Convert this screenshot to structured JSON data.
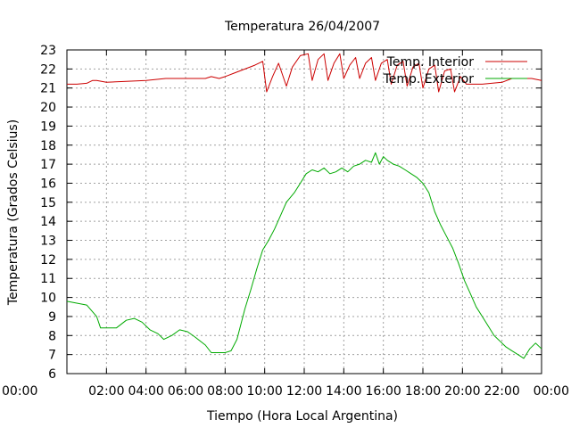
{
  "chart_data": {
    "type": "line",
    "title": "Temperatura 26/04/2007",
    "xlabel": "Tiempo (Hora Local Argentina)",
    "ylabel": "Temperatura (Grados Celsius)",
    "xlim": [
      0,
      24
    ],
    "ylim": [
      6,
      23
    ],
    "grid": true,
    "legend_position": "top-right",
    "x_tick_labels": [
      "00:00",
      "02:00",
      "04:00",
      "06:00",
      "08:00",
      "10:00",
      "12:00",
      "14:00",
      "16:00",
      "18:00",
      "20:00",
      "22:00",
      "00:00"
    ],
    "y_ticks": [
      6,
      7,
      8,
      9,
      10,
      11,
      12,
      13,
      14,
      15,
      16,
      17,
      18,
      19,
      20,
      21,
      22,
      23
    ],
    "series": [
      {
        "name": "Temp. Interior",
        "color": "#cc0000",
        "points": [
          [
            0,
            21.2
          ],
          [
            0.5,
            21.2
          ],
          [
            1,
            21.25
          ],
          [
            1.3,
            21.4
          ],
          [
            1.5,
            21.4
          ],
          [
            2,
            21.3
          ],
          [
            3,
            21.35
          ],
          [
            4,
            21.4
          ],
          [
            5,
            21.5
          ],
          [
            6,
            21.5
          ],
          [
            7,
            21.5
          ],
          [
            7.3,
            21.6
          ],
          [
            7.7,
            21.5
          ],
          [
            8,
            21.6
          ],
          [
            8.5,
            21.8
          ],
          [
            9,
            22.0
          ],
          [
            9.5,
            22.2
          ],
          [
            9.9,
            22.4
          ],
          [
            10.1,
            20.8
          ],
          [
            10.4,
            21.6
          ],
          [
            10.7,
            22.3
          ],
          [
            11.1,
            21.1
          ],
          [
            11.4,
            22.1
          ],
          [
            11.8,
            22.7
          ],
          [
            12.2,
            22.8
          ],
          [
            12.4,
            21.4
          ],
          [
            12.7,
            22.5
          ],
          [
            13,
            22.8
          ],
          [
            13.2,
            21.4
          ],
          [
            13.5,
            22.3
          ],
          [
            13.8,
            22.8
          ],
          [
            14,
            21.5
          ],
          [
            14.3,
            22.2
          ],
          [
            14.6,
            22.6
          ],
          [
            14.8,
            21.5
          ],
          [
            15.1,
            22.3
          ],
          [
            15.4,
            22.6
          ],
          [
            15.6,
            21.4
          ],
          [
            15.9,
            22.3
          ],
          [
            16.2,
            22.5
          ],
          [
            16.4,
            21.2
          ],
          [
            16.7,
            22.2
          ],
          [
            17,
            22.4
          ],
          [
            17.2,
            21.1
          ],
          [
            17.5,
            22.1
          ],
          [
            17.8,
            22.3
          ],
          [
            18,
            21.0
          ],
          [
            18.3,
            22.0
          ],
          [
            18.6,
            22.2
          ],
          [
            18.8,
            20.8
          ],
          [
            19.1,
            21.9
          ],
          [
            19.4,
            22.0
          ],
          [
            19.6,
            20.8
          ],
          [
            19.9,
            21.6
          ],
          [
            20.2,
            21.2
          ],
          [
            21,
            21.2
          ],
          [
            22,
            21.3
          ],
          [
            22.5,
            21.5
          ],
          [
            23,
            21.5
          ],
          [
            23.5,
            21.5
          ],
          [
            24,
            21.4
          ]
        ]
      },
      {
        "name": "Temp. Exterior",
        "color": "#00aa00",
        "points": [
          [
            0,
            9.8
          ],
          [
            0.5,
            9.7
          ],
          [
            1,
            9.6
          ],
          [
            1.5,
            9.0
          ],
          [
            1.7,
            8.4
          ],
          [
            2.5,
            8.4
          ],
          [
            3,
            8.8
          ],
          [
            3.4,
            8.9
          ],
          [
            3.8,
            8.7
          ],
          [
            4.2,
            8.3
          ],
          [
            4.6,
            8.1
          ],
          [
            4.9,
            7.8
          ],
          [
            5.3,
            8.0
          ],
          [
            5.7,
            8.3
          ],
          [
            6.1,
            8.2
          ],
          [
            6.5,
            7.9
          ],
          [
            7,
            7.5
          ],
          [
            7.3,
            7.1
          ],
          [
            7.7,
            7.1
          ],
          [
            8,
            7.1
          ],
          [
            8.3,
            7.2
          ],
          [
            8.6,
            7.8
          ],
          [
            9,
            9.4
          ],
          [
            9.3,
            10.4
          ],
          [
            9.6,
            11.5
          ],
          [
            9.9,
            12.5
          ],
          [
            10.2,
            13.0
          ],
          [
            10.5,
            13.6
          ],
          [
            10.8,
            14.3
          ],
          [
            11.1,
            15.0
          ],
          [
            11.5,
            15.5
          ],
          [
            11.8,
            16.0
          ],
          [
            12.1,
            16.5
          ],
          [
            12.4,
            16.7
          ],
          [
            12.7,
            16.6
          ],
          [
            13,
            16.8
          ],
          [
            13.3,
            16.5
          ],
          [
            13.6,
            16.6
          ],
          [
            13.9,
            16.8
          ],
          [
            14.2,
            16.6
          ],
          [
            14.5,
            16.9
          ],
          [
            14.8,
            17.0
          ],
          [
            15.1,
            17.2
          ],
          [
            15.4,
            17.1
          ],
          [
            15.6,
            17.6
          ],
          [
            15.8,
            17.0
          ],
          [
            16,
            17.4
          ],
          [
            16.2,
            17.2
          ],
          [
            16.5,
            17.0
          ],
          [
            16.8,
            16.9
          ],
          [
            17.1,
            16.7
          ],
          [
            17.4,
            16.5
          ],
          [
            17.7,
            16.3
          ],
          [
            18,
            16.0
          ],
          [
            18.3,
            15.5
          ],
          [
            18.6,
            14.5
          ],
          [
            18.9,
            13.8
          ],
          [
            19.2,
            13.2
          ],
          [
            19.5,
            12.6
          ],
          [
            19.8,
            11.8
          ],
          [
            20.1,
            10.9
          ],
          [
            20.4,
            10.2
          ],
          [
            20.7,
            9.5
          ],
          [
            21,
            9.0
          ],
          [
            21.3,
            8.5
          ],
          [
            21.6,
            8.0
          ],
          [
            21.9,
            7.7
          ],
          [
            22.2,
            7.4
          ],
          [
            22.5,
            7.2
          ],
          [
            22.8,
            7.0
          ],
          [
            23.1,
            6.8
          ],
          [
            23.4,
            7.3
          ],
          [
            23.7,
            7.6
          ],
          [
            24,
            7.3
          ]
        ]
      }
    ]
  }
}
